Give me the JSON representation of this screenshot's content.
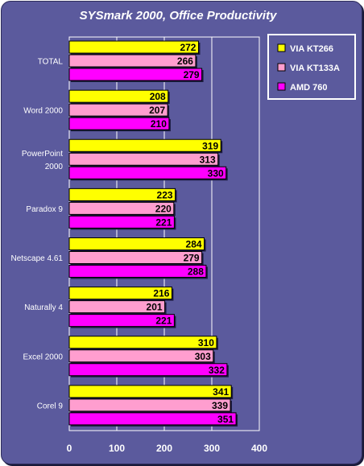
{
  "chart_data": {
    "type": "bar",
    "orientation": "horizontal",
    "title": "SYSmark 2000, Office Productivity",
    "categories": [
      [
        "TOTAL"
      ],
      [
        "Word 2000"
      ],
      [
        "PowerPoint",
        "2000"
      ],
      [
        "Paradox 9"
      ],
      [
        "Netscape 4.61"
      ],
      [
        "Naturally 4"
      ],
      [
        "Excel 2000"
      ],
      [
        "Corel 9"
      ]
    ],
    "series": [
      {
        "name": "VIA KT266",
        "color": "#ffff00",
        "values": [
          272,
          208,
          319,
          223,
          284,
          216,
          310,
          341
        ]
      },
      {
        "name": "VIA KT133A",
        "color": "#ff9ecf",
        "values": [
          266,
          207,
          313,
          220,
          279,
          201,
          303,
          339
        ]
      },
      {
        "name": "AMD 760",
        "color": "#ff00ff",
        "values": [
          279,
          210,
          330,
          221,
          288,
          221,
          332,
          351
        ]
      }
    ],
    "xlim": [
      0,
      400
    ],
    "xticks": [
      "0",
      "100",
      "200",
      "300",
      "400"
    ],
    "xlabel": "",
    "ylabel": "",
    "grid": true,
    "legend_position": "top-right",
    "background": "#5b5a9d",
    "plot_background": "#5b5a9d"
  }
}
